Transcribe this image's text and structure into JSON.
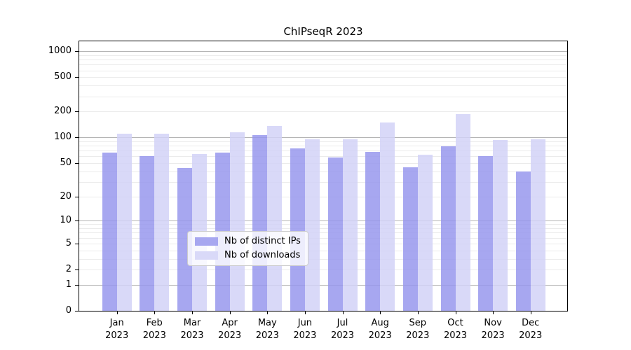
{
  "chart": {
    "title": "ChIPseqR 2023"
  },
  "chart_data": {
    "type": "bar",
    "title": "ChIPseqR 2023",
    "categories": [
      "Jan 2023",
      "Feb 2023",
      "Mar 2023",
      "Apr 2023",
      "May 2023",
      "Jun 2023",
      "Jul 2023",
      "Aug 2023",
      "Sep 2023",
      "Oct 2023",
      "Nov 2023",
      "Dec 2023"
    ],
    "series": [
      {
        "name": "Nb of distinct IPs",
        "color": "#a7a7f0",
        "values": [
          66,
          60,
          44,
          67,
          107,
          75,
          58,
          68,
          45,
          79,
          61,
          40
        ]
      },
      {
        "name": "Nb of downloads",
        "color": "#d9d9f8",
        "values": [
          111,
          111,
          64,
          116,
          135,
          96,
          96,
          150,
          63,
          188,
          94,
          96
        ]
      }
    ],
    "xlabel": "",
    "ylabel": "",
    "yscale": "log1p",
    "ylim": [
      0,
      1305
    ],
    "y_tick_values": [
      1000,
      500,
      200,
      100,
      50,
      20,
      10,
      5,
      2,
      1,
      0
    ],
    "y_tick_labels": [
      "1000",
      "500",
      "200",
      "100",
      "50",
      "20",
      "10",
      "5",
      "2",
      "1",
      "0"
    ],
    "grid": true,
    "gridline_major_values": [
      1,
      10,
      100,
      1000
    ],
    "legend_position": "lower center"
  }
}
